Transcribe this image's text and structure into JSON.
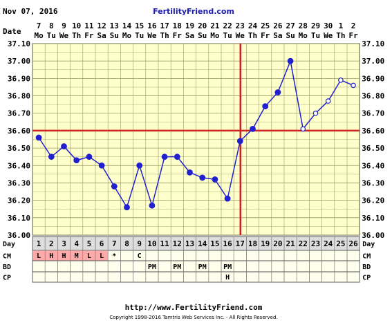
{
  "header": {
    "date": "Nov 07, 2016",
    "brand": "FertilityFriend.com"
  },
  "footer": {
    "url": "http://www.FertilityFriend.com",
    "copyright": "Copyright 1998-2016 Tamtris Web Services Inc. - All Rights Reserved."
  },
  "colors": {
    "background": "#ffffff",
    "plot_bg": "#ffffcc",
    "grid": "#999966",
    "line": "#2020d0",
    "coverline": "#cc2222",
    "ovulation_line": "#cc2222",
    "cm_fertile_cell": "#ffaaaa",
    "row_bg": "#ffffee",
    "day_header_bg": "#dddddd"
  },
  "chart_data": {
    "type": "line",
    "row_labels": {
      "date": "Date",
      "day": "Day",
      "cm": "CM",
      "bd": "BD",
      "cp": "CP"
    },
    "date_top": [
      "7",
      "8",
      "9",
      "10",
      "11",
      "12",
      "13",
      "14",
      "15",
      "16",
      "17",
      "18",
      "19",
      "20",
      "21",
      "22",
      "23",
      "24",
      "25",
      "26",
      "27",
      "28",
      "29",
      "30",
      "1",
      "2"
    ],
    "weekdays": [
      "Mo",
      "Tu",
      "We",
      "Th",
      "Fr",
      "Sa",
      "Su",
      "Mo",
      "Tu",
      "We",
      "Th",
      "Fr",
      "Sa",
      "Su",
      "Mo",
      "Tu",
      "We",
      "Th",
      "Fr",
      "Sa",
      "Su",
      "Mo",
      "Tu",
      "We",
      "Th",
      "Fr"
    ],
    "days": [
      "1",
      "2",
      "3",
      "4",
      "5",
      "6",
      "7",
      "8",
      "9",
      "10",
      "11",
      "12",
      "13",
      "14",
      "15",
      "16",
      "17",
      "18",
      "19",
      "20",
      "21",
      "22",
      "23",
      "24",
      "25",
      "26"
    ],
    "y_ticks": [
      "36.00",
      "36.10",
      "36.20",
      "36.30",
      "36.40",
      "36.50",
      "36.60",
      "36.70",
      "36.80",
      "36.90",
      "37.00",
      "37.10"
    ],
    "ylim": [
      36.0,
      37.1
    ],
    "temps": [
      36.56,
      36.45,
      36.51,
      36.43,
      36.45,
      36.4,
      36.28,
      36.16,
      36.4,
      36.17,
      36.45,
      36.45,
      36.36,
      36.33,
      36.32,
      36.21,
      36.54,
      36.61,
      36.74,
      36.82,
      37.0,
      36.61,
      36.7,
      36.77,
      36.89,
      36.86
    ],
    "open_points_days": [
      22,
      23,
      24,
      25,
      26
    ],
    "coverline": 36.6,
    "ovulation_day": 17,
    "cm": [
      "L",
      "H",
      "H",
      "M",
      "L",
      "L",
      "*",
      "",
      "C",
      "",
      "",
      "",
      "",
      "",
      "",
      "",
      "",
      "",
      "",
      "",
      "",
      "",
      "",
      "",
      "",
      ""
    ],
    "cm_fertile_days": [
      1,
      2,
      3,
      4,
      5,
      6
    ],
    "bd": [
      "",
      "",
      "",
      "",
      "",
      "",
      "",
      "",
      "",
      "PM",
      "",
      "PM",
      "",
      "PM",
      "",
      "PM",
      "",
      "",
      "",
      "",
      "",
      "",
      "",
      "",
      "",
      ""
    ],
    "cp": [
      "",
      "",
      "",
      "",
      "",
      "",
      "",
      "",
      "",
      "",
      "",
      "",
      "",
      "",
      "",
      "H",
      "",
      "",
      "",
      "",
      "",
      "",
      "",
      "",
      "",
      ""
    ]
  }
}
